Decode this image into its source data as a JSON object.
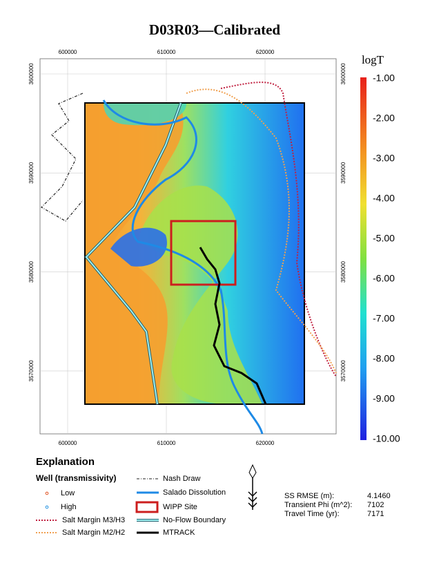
{
  "title": "D03R03—Calibrated",
  "map": {
    "x_ticks": [
      "600000",
      "610000",
      "620000"
    ],
    "y_ticks": [
      "3600000",
      "3590000",
      "3580000",
      "3570000"
    ]
  },
  "colorbar": {
    "label": "logT",
    "ticks": [
      "-1.00",
      "-2.00",
      "-3.00",
      "-4.00",
      "-5.00",
      "-6.00",
      "-7.00",
      "-8.00",
      "-9.00",
      "-10.00"
    ]
  },
  "explanation": {
    "title": "Explanation",
    "well_heading": "Well (transmissivity)",
    "items": [
      {
        "label": "Low"
      },
      {
        "label": "High"
      },
      {
        "label": "Salt Margin M3/H3"
      },
      {
        "label": "Salt Margin M2/H2"
      },
      {
        "label": "Nash Draw"
      },
      {
        "label": "Salado Dissolution"
      },
      {
        "label": "WIPP Site"
      },
      {
        "label": "No-Flow Boundary"
      },
      {
        "label": "MTRACK"
      }
    ]
  },
  "stats": [
    [
      "SS RMSE (m):",
      "4.1460"
    ],
    [
      "Transient Phi (m^2):",
      "7102"
    ],
    [
      "Travel Time (yr):",
      "7171"
    ]
  ]
}
